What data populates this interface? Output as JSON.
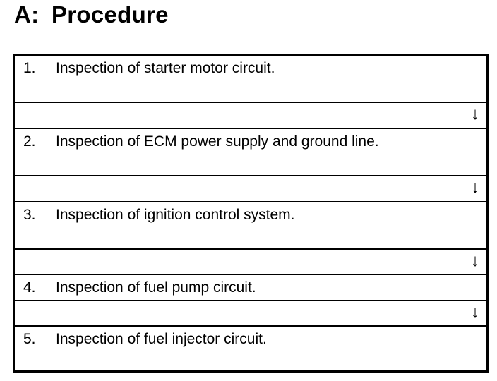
{
  "title": "A:  Procedure",
  "steps": [
    {
      "number": "1.",
      "text": "Inspection of starter motor circuit."
    },
    {
      "number": "2.",
      "text": "Inspection of ECM power supply and ground line."
    },
    {
      "number": "3.",
      "text": "Inspection of ignition control system."
    },
    {
      "number": "4.",
      "text": "Inspection of fuel pump circuit."
    },
    {
      "number": "5.",
      "text": "Inspection of fuel injector circuit."
    }
  ],
  "arrow_icon": "down-arrow-icon",
  "arrow_glyph": "↓"
}
